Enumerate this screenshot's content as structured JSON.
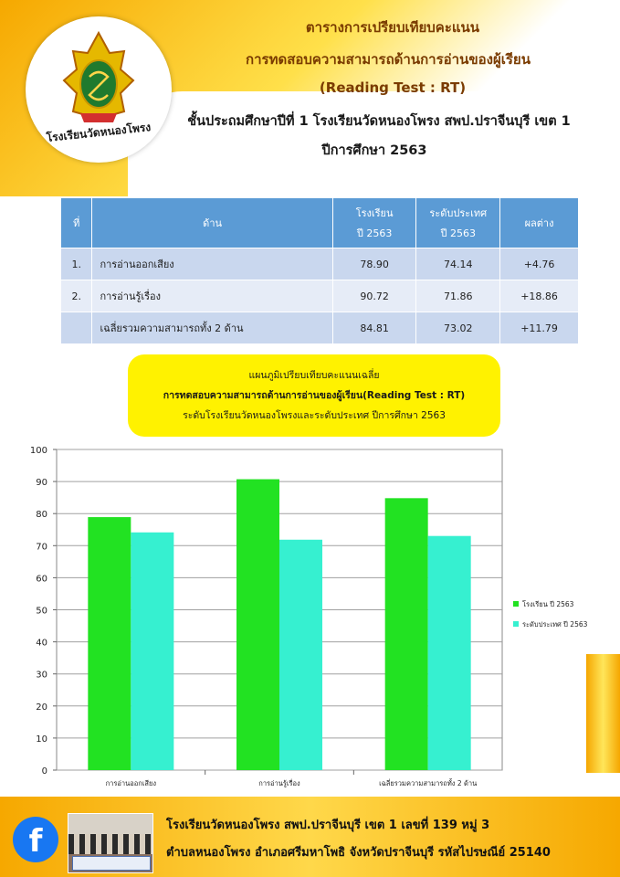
{
  "header": {
    "line1": "ตารางการเปรียบเทียบคะแนน",
    "line2": "การทดสอบความสามารถด้านการอ่านของผู้เรียน",
    "line3": "(Reading Test : RT)",
    "line4": "ชั้นประถมศึกษาปีที่ 1 โรงเรียนวัดหนองโพรง สพป.ปราจีนบุรี เขต 1",
    "line5": "ปีการศึกษา 2563",
    "logo_text": "โรงเรียนวัดหนองโพรง"
  },
  "table": {
    "headers": [
      "ที่",
      "ด้าน",
      "โรงเรียน",
      "ปี 2563",
      "ระดับประเทศ",
      "ปี 2563",
      "ผลต่าง"
    ],
    "rows": [
      {
        "no": "1.",
        "name": "การอ่านออกเสียง",
        "school": "78.90",
        "nation": "74.14",
        "diff": "+4.76"
      },
      {
        "no": "2.",
        "name": "การอ่านรู้เรื่อง",
        "school": "90.72",
        "nation": "71.86",
        "diff": "+18.86"
      },
      {
        "no": "",
        "name": "เฉลี่ยรวมความสามารถทั้ง  2 ด้าน",
        "school": "84.81",
        "nation": "73.02",
        "diff": "+11.79"
      }
    ]
  },
  "chart_title": {
    "line1": "แผนภูมิเปรียบเทียบคะแนนเฉลี่ย",
    "line2": "การทดสอบความสามารถด้านการอ่านของผู้เรียน(Reading   Test : RT)",
    "line3": "ระดับโรงเรียนวัดหนองโพรงและระดับประเทศ  ปีการศึกษา  2563"
  },
  "chart_data": {
    "type": "bar",
    "categories": [
      "การอ่านออกเสียง",
      "การอ่านรู้เรื่อง",
      "เฉลี่ยรวมความสามารถทั้ง 2 ด้าน"
    ],
    "series": [
      {
        "name": "โรงเรียน ปี 2563",
        "values": [
          78.9,
          90.72,
          84.81
        ],
        "color": "#22e222"
      },
      {
        "name": "ระดับประเทศ ปี 2563",
        "values": [
          74.14,
          71.86,
          73.02
        ],
        "color": "#36f0d0"
      }
    ],
    "yticks": [
      "0",
      "10",
      "20",
      "30",
      "40",
      "50",
      "60",
      "70",
      "80",
      "90",
      "100"
    ],
    "ylim": [
      0,
      100
    ],
    "grid": true,
    "legend": "right"
  },
  "footer": {
    "line1": "โรงเรียนวัดหนองโพรง สพป.ปราจีนบุรี เขต 1 เลขที่ 139  หมู่ 3",
    "line2": "ตำบลหนองโพรง อำเภอศรีมหาโพธิ  จังหวัดปราจีนบุรี รหัสไปรษณีย์ 25140",
    "fb_icon": "f"
  }
}
